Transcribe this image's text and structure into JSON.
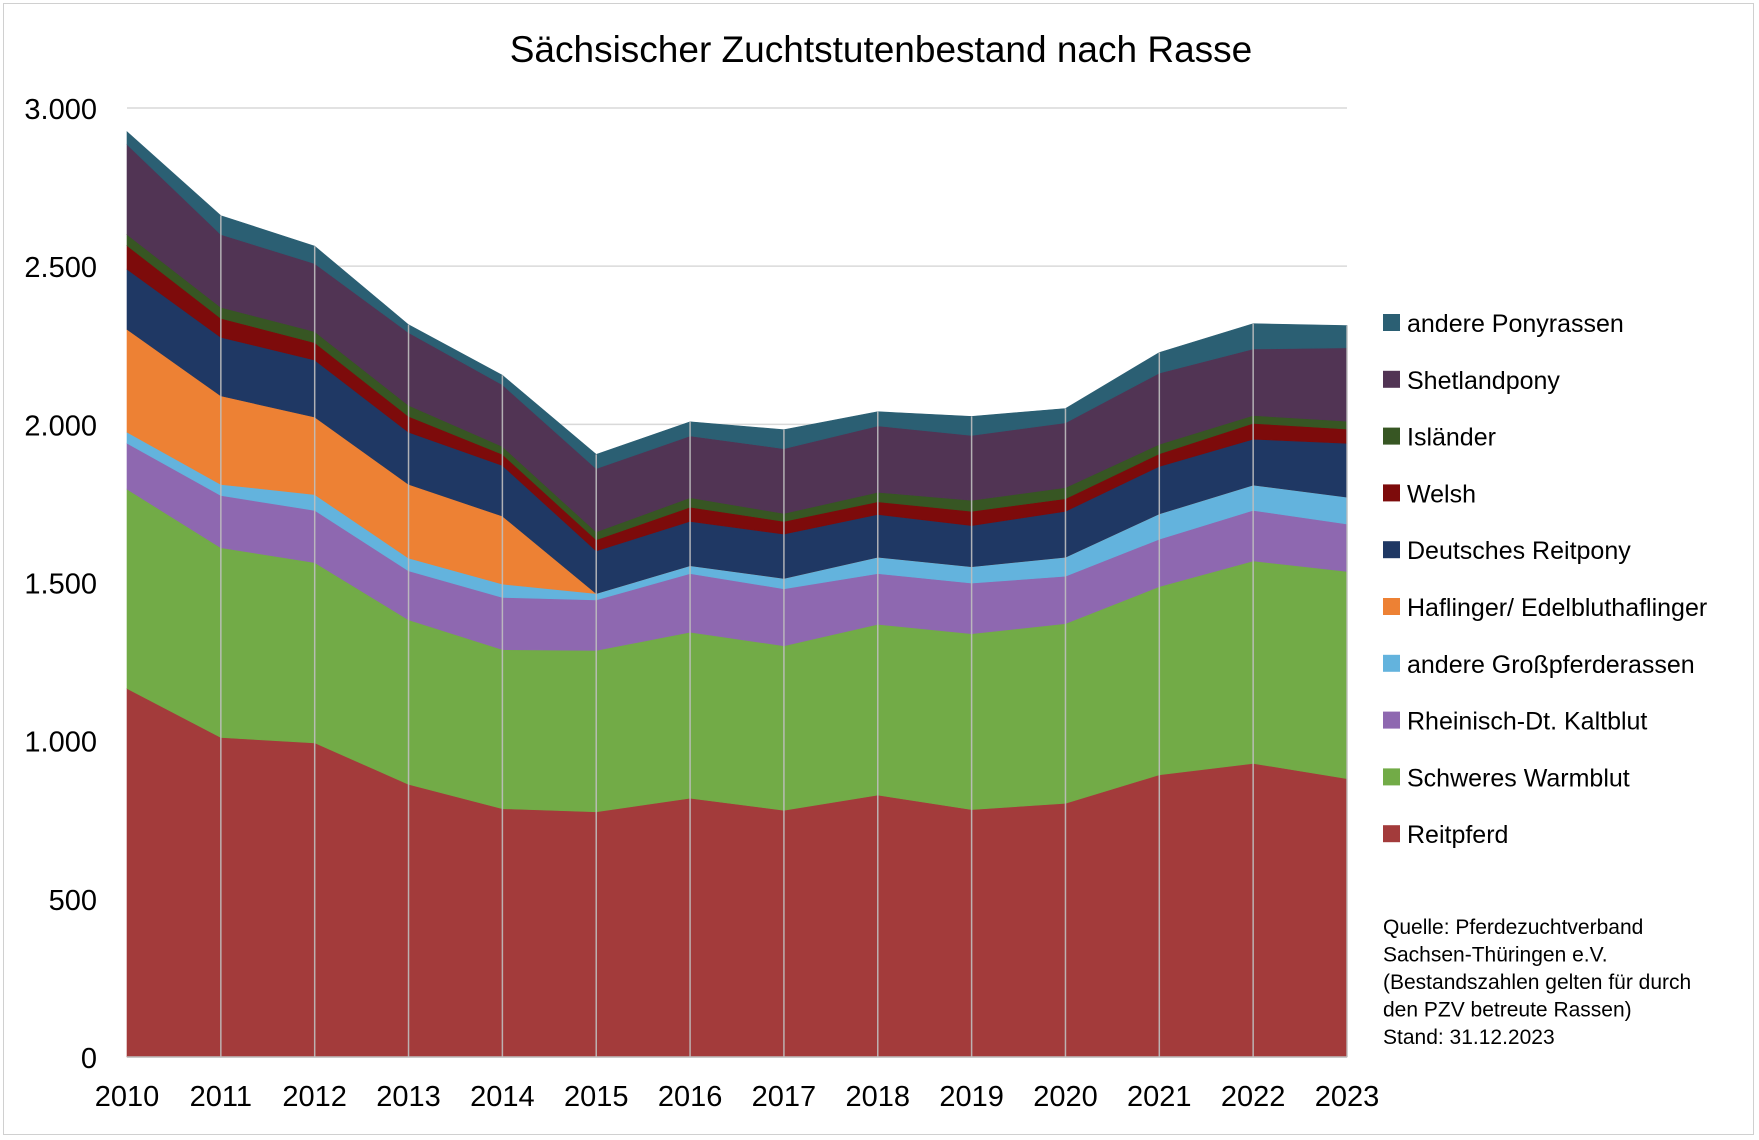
{
  "chart_data": {
    "type": "area",
    "stacked": true,
    "title": "Sächsischer Zuchtstutenbestand nach Rasse",
    "xlabel": "",
    "ylabel": "",
    "categories": [
      "2010",
      "2011",
      "2012",
      "2013",
      "2014",
      "2015",
      "2016",
      "2017",
      "2018",
      "2019",
      "2020",
      "2021",
      "2022",
      "2023"
    ],
    "ylim": [
      0,
      3000
    ],
    "yticks": [
      0,
      500,
      1000,
      1500,
      2000,
      2500,
      3000
    ],
    "ytick_labels": [
      "0",
      "500",
      "1.000",
      "1.500",
      "2.000",
      "2.500",
      "3.000"
    ],
    "grid": "horizontal",
    "legend_position": "right",
    "series": [
      {
        "name": "Reitpferd",
        "color": "#a33b3b",
        "values": [
          1165,
          1010,
          993,
          862,
          785,
          775,
          818,
          780,
          828,
          782,
          802,
          892,
          928,
          880
        ]
      },
      {
        "name": "Schweres Warmblut",
        "color": "#72ab47",
        "values": [
          630,
          600,
          570,
          520,
          503,
          510,
          525,
          520,
          540,
          556,
          568,
          595,
          640,
          655
        ]
      },
      {
        "name": "Rheinisch-Dt. Kaltblut",
        "color": "#8e68b0",
        "values": [
          145,
          165,
          165,
          155,
          165,
          160,
          185,
          180,
          160,
          160,
          150,
          150,
          160,
          150
        ]
      },
      {
        "name": "andere Großpferderassen",
        "color": "#63b3dd",
        "values": [
          35,
          35,
          50,
          40,
          42,
          20,
          25,
          33,
          52,
          52,
          60,
          80,
          80,
          85
        ]
      },
      {
        "name": "Haflinger/ Edelbluthaflinger",
        "color": "#ed8134",
        "values": [
          325,
          280,
          245,
          233,
          215,
          0,
          0,
          0,
          0,
          0,
          0,
          0,
          0,
          0
        ]
      },
      {
        "name": "Deutsches Reitpony",
        "color": "#1f3864",
        "values": [
          190,
          185,
          180,
          165,
          160,
          135,
          140,
          140,
          135,
          130,
          145,
          150,
          145,
          170
        ]
      },
      {
        "name": "Welsh",
        "color": "#7d0b0b",
        "values": [
          75,
          60,
          55,
          50,
          35,
          35,
          45,
          40,
          40,
          45,
          40,
          40,
          50,
          45
        ]
      },
      {
        "name": "Isländer",
        "color": "#375623",
        "values": [
          35,
          35,
          35,
          35,
          25,
          25,
          30,
          25,
          30,
          35,
          35,
          30,
          25,
          25
        ]
      },
      {
        "name": "Shetlandpony",
        "color": "#513454",
        "values": [
          285,
          230,
          215,
          230,
          195,
          200,
          195,
          205,
          210,
          205,
          205,
          225,
          210,
          232
        ]
      },
      {
        "name": "andere Ponyrassen",
        "color": "#2b5f73",
        "values": [
          40,
          60,
          55,
          25,
          30,
          45,
          45,
          60,
          45,
          60,
          45,
          65,
          80,
          70
        ]
      }
    ],
    "source_note": [
      "Quelle: Pferdezuchtverband",
      "Sachsen-Thüringen e.V.",
      "(Bestandszahlen gelten für durch",
      "den PZV betreute Rassen)",
      "Stand: 31.12.2023"
    ]
  }
}
